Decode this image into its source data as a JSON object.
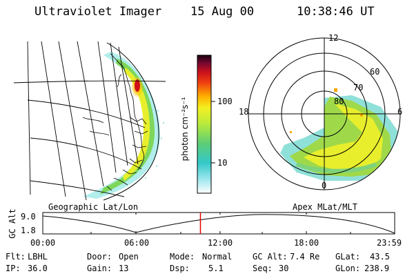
{
  "header": {
    "instrument": "Ultraviolet Imager",
    "date": "15 Aug 00",
    "time": "10:38:46 UT"
  },
  "colorbar": {
    "label": "photon cm⁻²s⁻¹",
    "ticks": [
      "100",
      "10"
    ],
    "scale": "log"
  },
  "polar_plot": {
    "mlt_labels": [
      "12",
      "18",
      "6",
      "0"
    ],
    "mlat_labels": [
      "60",
      "70",
      "80"
    ]
  },
  "map_panel": {
    "caption": "Geographic Lat/Lon"
  },
  "polar_caption": "Apex MLat/MLT",
  "altitude_track": {
    "axis_label": "GC Alt",
    "y_ticks": [
      "9.0",
      "1.8"
    ],
    "x_ticks": [
      "00:00",
      "06:00",
      "12:00",
      "18:00",
      "23:59"
    ],
    "current_time_marker_fraction": 0.448,
    "marker_color": "#e00000"
  },
  "info": {
    "filter_label": "Flt:",
    "filter_value": "LBHL",
    "ip_label": "IP:",
    "ip_value": "36.0",
    "door_label": "Door:",
    "door_value": "Open",
    "gain_label": "Gain:",
    "gain_value": "13",
    "mode_label": "Mode:",
    "mode_value": "Normal",
    "dsp_label": "Dsp:",
    "dsp_value": "5.1",
    "gcalt_label": "GC Alt:",
    "gcalt_value": "7.4 Re",
    "seq_label": "Seq:",
    "seq_value": "30",
    "glat_label": "GLat:",
    "glat_value": "43.5",
    "glon_label": "GLon:",
    "glon_value": "238.9"
  }
}
